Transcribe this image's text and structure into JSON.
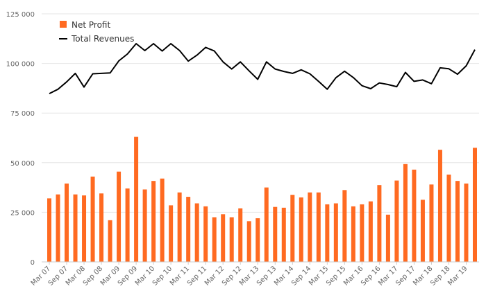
{
  "chart_data": {
    "type": "bar",
    "categories": [
      "Mar 07",
      "Jun 07",
      "Sep 07",
      "Dec 07",
      "Mar 08",
      "Jun 08",
      "Sep 08",
      "Dec 08",
      "Mar 09",
      "Jun 09",
      "Sep 09",
      "Dec 09",
      "Mar 10",
      "Jun 10",
      "Sep 10",
      "Dec 10",
      "Mar 11",
      "Jun 11",
      "Sep 11",
      "Dec 11",
      "Mar 12",
      "Jun 12",
      "Sep 12",
      "Dec 12",
      "Mar 13",
      "Jun 13",
      "Sep 13",
      "Dec 13",
      "Mar 14",
      "Jun 14",
      "Sep 14",
      "Dec 14",
      "Mar 15",
      "Jun 15",
      "Sep 15",
      "Dec 15",
      "Mar 16",
      "Jun 16",
      "Sep 16",
      "Dec 16",
      "Mar 17",
      "Jun 17",
      "Sep 17",
      "Dec 17",
      "Mar 18",
      "Jun 18",
      "Sep 18",
      "Dec 18",
      "Mar 19",
      "Jun 19"
    ],
    "x_tick_labels": [
      "Mar 07",
      "Sep 07",
      "Mar 08",
      "Sep 08",
      "Mar 09",
      "Sep 09",
      "Mar 10",
      "Sep 10",
      "Mar 11",
      "Sep 11",
      "Mar 12",
      "Sep 12",
      "Mar 13",
      "Sep 13",
      "Mar 14",
      "Sep 14",
      "Mar 15",
      "Sep 15",
      "Mar 16",
      "Sep 16",
      "Mar 17",
      "Sep 17",
      "Mar 18",
      "Sep 18",
      "Mar 19"
    ],
    "y_tick_labels": [
      "0",
      "25 000",
      "50 000",
      "75 000",
      "100 000",
      "125 000"
    ],
    "ylim": [
      0,
      125000
    ],
    "grid": "horizontal",
    "legend": "top-left",
    "series": [
      {
        "name": "Net Profit",
        "type": "bar",
        "color": "#ff6a21",
        "values": [
          32000,
          34000,
          39500,
          34000,
          33500,
          43000,
          34500,
          21000,
          45500,
          37000,
          63000,
          36500,
          40800,
          42000,
          28500,
          35000,
          32800,
          29500,
          28000,
          22500,
          24000,
          22500,
          27000,
          20500,
          22000,
          37500,
          27700,
          27300,
          33800,
          32500,
          35000,
          35000,
          29000,
          29500,
          36200,
          28000,
          29000,
          30500,
          38700,
          23800,
          41000,
          49300,
          46500,
          31300,
          39000,
          56500,
          44000,
          40800,
          39500,
          57500
        ]
      },
      {
        "name": "Total Revenues",
        "type": "line",
        "color": "#000000",
        "values": [
          84800,
          87000,
          90700,
          95000,
          88100,
          94800,
          95000,
          95200,
          101300,
          104800,
          110000,
          106500,
          110000,
          106300,
          110000,
          106500,
          101200,
          104200,
          108100,
          106300,
          100800,
          97200,
          100800,
          96300,
          92000,
          100800,
          97200,
          96000,
          95000,
          96800,
          94800,
          91000,
          87000,
          92800,
          96100,
          92900,
          88800,
          87300,
          90200,
          89400,
          88300,
          95500,
          91000,
          91700,
          89800,
          97800,
          97300,
          94600,
          98800,
          107000
        ]
      }
    ]
  }
}
